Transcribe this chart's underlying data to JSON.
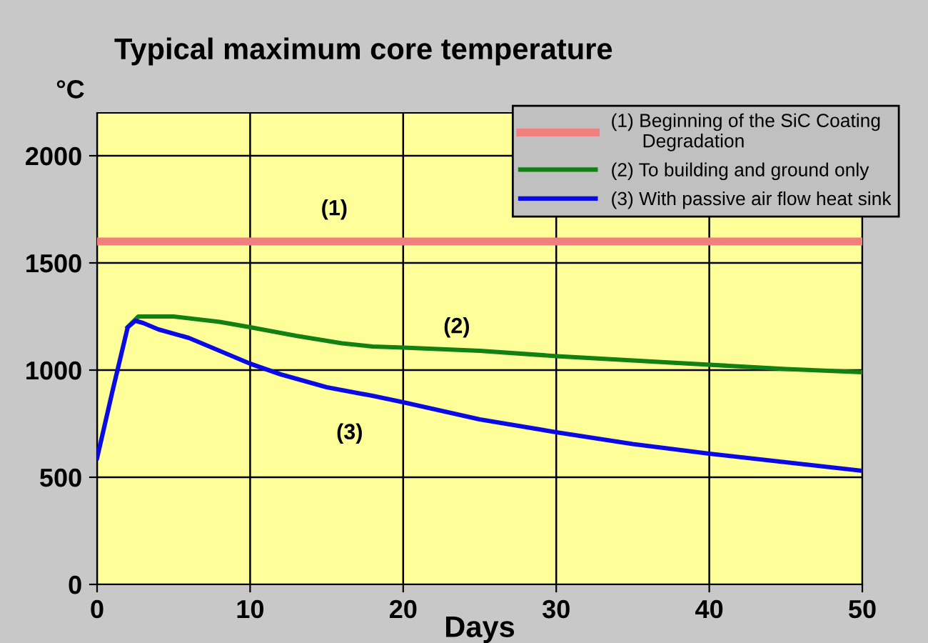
{
  "chart_data": {
    "type": "line",
    "title": "Typical maximum core temperature",
    "xlabel": "Days",
    "ylabel": "°C",
    "xlim": [
      0,
      50
    ],
    "xticks": [
      0,
      10,
      20,
      30,
      40,
      50
    ],
    "ylim": [
      0,
      2200
    ],
    "yticks": [
      0,
      500,
      1000,
      1500,
      2000
    ],
    "grid": true,
    "legend": "top right",
    "marker": "none",
    "line_style": "solid",
    "series": [
      {
        "name": "(1) Beginning of the SiC Coating\n      Degradation",
        "color": "#f08080",
        "x": [
          0,
          50
        ],
        "values": [
          1600,
          1600
        ]
      },
      {
        "name": "(2) To building and ground only",
        "color": "#128012",
        "x": [
          2,
          2.7,
          5,
          8,
          10,
          13,
          16,
          18,
          20,
          25,
          30,
          35,
          40,
          45,
          50
        ],
        "values": [
          1200,
          1250,
          1250,
          1225,
          1200,
          1160,
          1125,
          1110,
          1105,
          1090,
          1065,
          1045,
          1025,
          1005,
          990
        ]
      },
      {
        "name": "(3) With passive air flow heat sink",
        "color": "#0a0ae6",
        "x": [
          0,
          1,
          2,
          2.5,
          3,
          4,
          6,
          8,
          10,
          12,
          15,
          18,
          20,
          25,
          30,
          35,
          40,
          45,
          50
        ],
        "values": [
          590,
          900,
          1200,
          1230,
          1220,
          1190,
          1150,
          1090,
          1030,
          980,
          920,
          880,
          850,
          770,
          710,
          655,
          610,
          570,
          530
        ]
      }
    ],
    "annotations": [
      "(1)",
      "(2)",
      "(3)"
    ]
  }
}
